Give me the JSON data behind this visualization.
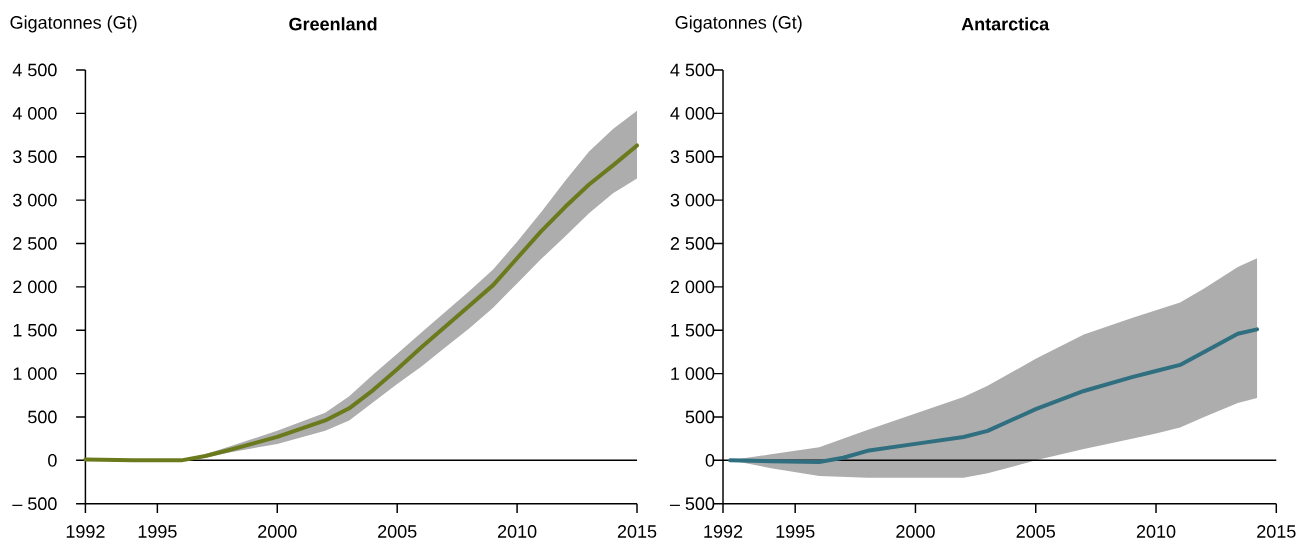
{
  "chart_data": [
    {
      "type": "line",
      "title": "Greenland",
      "ylabel": "Gigatonnes (Gt)",
      "xlim": [
        1992,
        2015
      ],
      "xticks": [
        1992,
        1995,
        2000,
        2005,
        2010,
        2015
      ],
      "ylim": [
        -500,
        4500
      ],
      "yticks": [
        {
          "value": -500,
          "label": "– 500"
        },
        0,
        500,
        {
          "value": 1000,
          "label": "1 000"
        },
        {
          "value": 1500,
          "label": "1 500"
        },
        {
          "value": 2000,
          "label": "2 000"
        },
        {
          "value": 2500,
          "label": "2 500"
        },
        {
          "value": 3000,
          "label": "3 000"
        },
        {
          "value": 3500,
          "label": "3 500"
        },
        {
          "value": 4000,
          "label": "4 000"
        },
        {
          "value": 4500,
          "label": "4 500"
        }
      ],
      "marker": "none",
      "line_style": "solid",
      "ref_lines": [
        {
          "axis": "y",
          "value": 0,
          "color": "#000000"
        }
      ],
      "series": [
        {
          "color": "#6b7a1c",
          "x": [
            1992,
            1994,
            1996,
            1997,
            1998,
            2000,
            2002,
            2003,
            2004,
            2005,
            2006,
            2007,
            2008,
            2009,
            2010,
            2011,
            2012,
            2013,
            2014,
            2015
          ],
          "values": [
            10,
            0,
            0,
            50,
            120,
            270,
            460,
            600,
            810,
            1050,
            1300,
            1540,
            1780,
            2020,
            2330,
            2640,
            2920,
            3180,
            3400,
            3630
          ],
          "upper": [
            10,
            0,
            0,
            70,
            160,
            340,
            550,
            740,
            990,
            1230,
            1470,
            1710,
            1950,
            2200,
            2520,
            2860,
            3220,
            3560,
            3820,
            4030
          ],
          "lower": [
            10,
            0,
            0,
            30,
            90,
            190,
            340,
            460,
            670,
            880,
            1080,
            1300,
            1520,
            1760,
            2040,
            2320,
            2580,
            2850,
            3080,
            3250
          ]
        }
      ]
    },
    {
      "type": "line",
      "title": "Antarctica",
      "ylabel": "Gigatonnes (Gt)",
      "xlim": [
        1992,
        2015
      ],
      "xticks": [
        1992,
        1995,
        2000,
        2005,
        2010,
        2015
      ],
      "ylim": [
        -500,
        4500
      ],
      "yticks": [
        {
          "value": -500,
          "label": "– 500"
        },
        0,
        500,
        {
          "value": 1000,
          "label": "1 000"
        },
        {
          "value": 1500,
          "label": "1 500"
        },
        {
          "value": 2000,
          "label": "2 000"
        },
        {
          "value": 2500,
          "label": "2 500"
        },
        {
          "value": 3000,
          "label": "3 000"
        },
        {
          "value": 3500,
          "label": "3 500"
        },
        {
          "value": 4000,
          "label": "4 000"
        },
        {
          "value": 4500,
          "label": "4 500"
        }
      ],
      "marker": "none",
      "line_style": "solid",
      "ref_lines": [
        {
          "axis": "y",
          "value": 0,
          "color": "#000000"
        }
      ],
      "series": [
        {
          "color": "#2f6f80",
          "x": [
            1992.3,
            1994,
            1996,
            1997,
            1998,
            2000,
            2002,
            2003,
            2005,
            2007,
            2009,
            2010,
            2011,
            2012,
            2013.4,
            2014.2
          ],
          "values": [
            0,
            -10,
            -20,
            30,
            110,
            190,
            270,
            340,
            590,
            800,
            960,
            1030,
            1100,
            1250,
            1460,
            1510
          ],
          "upper": [
            0,
            70,
            150,
            250,
            350,
            540,
            730,
            860,
            1170,
            1450,
            1640,
            1730,
            1820,
            1980,
            2230,
            2330
          ],
          "lower": [
            0,
            -90,
            -180,
            -190,
            -200,
            -200,
            -200,
            -150,
            0,
            130,
            250,
            310,
            380,
            500,
            660,
            720
          ]
        }
      ]
    }
  ]
}
